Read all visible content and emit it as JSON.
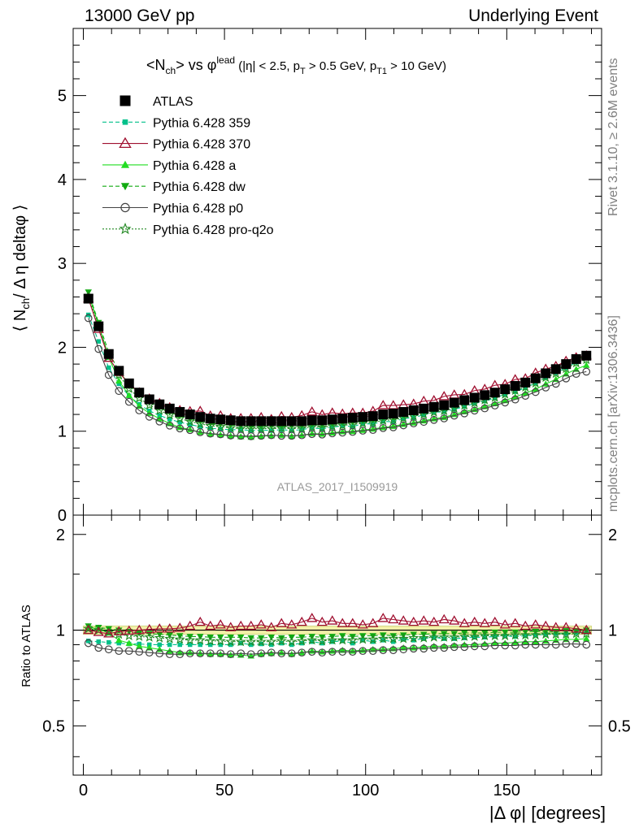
{
  "header": {
    "left": "13000 GeV pp",
    "right": "Underlying Event"
  },
  "side_labels": {
    "rivet": "Rivet 3.1.10, ≥ 2.6M events",
    "mcplots": "mcplots.cern.ch [arXiv:1306.3436]"
  },
  "chart_data": {
    "type": "scatter",
    "title": "<N_ch> vs φ^lead (|η| < 2.5, p_T > 0.5 GeV, p_T1 > 10 GeV)",
    "watermark": "ATLAS_2017_I1509919",
    "xlabel": "|Δ φ| [degrees]",
    "ylabel_main": "⟨ N_ch / Δη deltaφ ⟩",
    "ylabel_ratio": "Ratio to ATLAS",
    "xlim": [
      -3.6,
      183.6
    ],
    "ylim_main": [
      0,
      5.8
    ],
    "ylim_ratio": [
      0.35,
      2.3
    ],
    "ratio_scale": "log",
    "x_ticks": [
      "0",
      "50",
      "100",
      "150"
    ],
    "y_ticks_main": [
      "0",
      "1",
      "2",
      "3",
      "4",
      "5"
    ],
    "y_ticks_ratio": [
      "0.5",
      "1",
      "2"
    ],
    "x": [
      1.8,
      5.4,
      9,
      12.6,
      16.2,
      19.8,
      23.4,
      27,
      30.6,
      34.2,
      37.8,
      41.4,
      45,
      48.6,
      52.2,
      55.8,
      59.4,
      63,
      66.6,
      70.2,
      73.8,
      77.4,
      81,
      84.6,
      88.2,
      91.8,
      95.4,
      99,
      102.6,
      106.2,
      109.8,
      113.4,
      117,
      120.6,
      124.2,
      127.8,
      131.4,
      135,
      138.6,
      142.2,
      145.8,
      149.4,
      153,
      156.6,
      160.2,
      163.8,
      167.4,
      171,
      174.6,
      178.2
    ],
    "atlas": {
      "values": [
        2.58,
        2.25,
        1.92,
        1.72,
        1.57,
        1.46,
        1.38,
        1.32,
        1.27,
        1.23,
        1.2,
        1.17,
        1.15,
        1.14,
        1.13,
        1.12,
        1.12,
        1.12,
        1.12,
        1.12,
        1.12,
        1.12,
        1.13,
        1.13,
        1.14,
        1.15,
        1.16,
        1.17,
        1.18,
        1.2,
        1.21,
        1.23,
        1.25,
        1.27,
        1.29,
        1.31,
        1.34,
        1.37,
        1.4,
        1.43,
        1.46,
        1.5,
        1.54,
        1.58,
        1.63,
        1.69,
        1.74,
        1.8,
        1.86,
        1.9
      ],
      "band": 0.03
    },
    "series": [
      {
        "name": "ATLAS",
        "color": "#000000",
        "marker": "square-filled",
        "line": "none",
        "ratio": [
          1,
          1,
          1,
          1,
          1,
          1,
          1,
          1,
          1,
          1,
          1,
          1,
          1,
          1,
          1,
          1,
          1,
          1,
          1,
          1,
          1,
          1,
          1,
          1,
          1,
          1,
          1,
          1,
          1,
          1,
          1,
          1,
          1,
          1,
          1,
          1,
          1,
          1,
          1,
          1,
          1,
          1,
          1,
          1,
          1,
          1,
          1,
          1,
          1,
          1
        ]
      },
      {
        "name": "Pythia 6.428 359",
        "color": "#00c08a",
        "marker": "square-small",
        "line": "dashed",
        "ratio": [
          0.925,
          0.92,
          0.915,
          0.91,
          0.905,
          0.905,
          0.9,
          0.9,
          0.9,
          0.9,
          0.9,
          0.9,
          0.9,
          0.9,
          0.9,
          0.91,
          0.9,
          0.905,
          0.9,
          0.91,
          0.9,
          0.91,
          0.92,
          0.91,
          0.92,
          0.925,
          0.91,
          0.93,
          0.92,
          0.93,
          0.92,
          0.935,
          0.93,
          0.94,
          0.95,
          0.94,
          0.94,
          0.945,
          0.95,
          0.95,
          0.955,
          0.96,
          0.955,
          0.96,
          0.965,
          0.97,
          0.975,
          0.975,
          0.98,
          0.985
        ]
      },
      {
        "name": "Pythia 6.428 370",
        "color": "#a01030",
        "marker": "triangle-open",
        "line": "solid",
        "ratio": [
          1.0,
          0.985,
          0.975,
          0.99,
          0.995,
          1.0,
          1.005,
          1.01,
          1.01,
          1.015,
          1.03,
          1.06,
          1.03,
          1.04,
          1.02,
          1.03,
          1.03,
          1.04,
          1.02,
          1.05,
          1.04,
          1.06,
          1.09,
          1.06,
          1.07,
          1.05,
          1.05,
          1.04,
          1.05,
          1.09,
          1.08,
          1.07,
          1.06,
          1.07,
          1.06,
          1.08,
          1.07,
          1.05,
          1.06,
          1.05,
          1.06,
          1.04,
          1.05,
          1.03,
          1.04,
          1.03,
          1.02,
          1.02,
          1.01,
          1.0
        ]
      },
      {
        "name": "Pythia 6.428 a",
        "color": "#22dd22",
        "marker": "triangle-filled",
        "line": "solid",
        "ratio": [
          1.02,
          1.01,
          0.98,
          0.93,
          0.91,
          0.89,
          0.88,
          0.87,
          0.86,
          0.85,
          0.85,
          0.845,
          0.84,
          0.84,
          0.835,
          0.835,
          0.83,
          0.84,
          0.845,
          0.85,
          0.84,
          0.85,
          0.86,
          0.855,
          0.86,
          0.865,
          0.86,
          0.865,
          0.87,
          0.87,
          0.875,
          0.88,
          0.88,
          0.885,
          0.89,
          0.89,
          0.895,
          0.9,
          0.9,
          0.905,
          0.91,
          0.91,
          0.915,
          0.92,
          0.92,
          0.925,
          0.93,
          0.935,
          0.935,
          0.94
        ]
      },
      {
        "name": "Pythia 6.428 dw",
        "color": "#11aa11",
        "marker": "triangle-down-filled",
        "line": "dashed",
        "ratio": [
          1.03,
          1.02,
          1.01,
          1.0,
          0.99,
          0.98,
          0.975,
          0.97,
          0.965,
          0.96,
          0.955,
          0.955,
          0.95,
          0.95,
          0.95,
          0.95,
          0.945,
          0.945,
          0.95,
          0.945,
          0.95,
          0.95,
          0.955,
          0.95,
          0.955,
          0.96,
          0.955,
          0.96,
          0.96,
          0.965,
          0.96,
          0.965,
          0.97,
          0.97,
          0.975,
          0.975,
          0.975,
          0.98,
          0.98,
          0.98,
          0.985,
          0.985,
          0.985,
          0.99,
          0.99,
          0.99,
          0.99,
          0.995,
          0.995,
          1.0
        ]
      },
      {
        "name": "Pythia 6.428 p0",
        "color": "#444444",
        "marker": "circle-open",
        "line": "solid",
        "ratio": [
          0.91,
          0.88,
          0.87,
          0.86,
          0.86,
          0.855,
          0.85,
          0.845,
          0.84,
          0.84,
          0.845,
          0.845,
          0.845,
          0.845,
          0.84,
          0.845,
          0.84,
          0.845,
          0.85,
          0.845,
          0.845,
          0.85,
          0.855,
          0.85,
          0.855,
          0.855,
          0.855,
          0.86,
          0.86,
          0.865,
          0.865,
          0.87,
          0.875,
          0.875,
          0.88,
          0.88,
          0.885,
          0.885,
          0.89,
          0.89,
          0.895,
          0.895,
          0.895,
          0.9,
          0.9,
          0.9,
          0.9,
          0.905,
          0.905,
          0.9
        ]
      },
      {
        "name": "Pythia 6.428 pro-q2o",
        "color": "#228822",
        "marker": "star-open",
        "line": "dotted",
        "ratio": [
          1.01,
          1.0,
          0.985,
          0.97,
          0.96,
          0.955,
          0.95,
          0.945,
          0.94,
          0.935,
          0.93,
          0.93,
          0.925,
          0.925,
          0.92,
          0.92,
          0.92,
          0.92,
          0.92,
          0.925,
          0.92,
          0.925,
          0.93,
          0.925,
          0.93,
          0.93,
          0.93,
          0.935,
          0.935,
          0.94,
          0.94,
          0.94,
          0.945,
          0.945,
          0.95,
          0.95,
          0.95,
          0.955,
          0.955,
          0.96,
          0.96,
          0.96,
          0.965,
          0.965,
          0.965,
          0.97,
          0.97,
          0.97,
          0.975,
          0.975
        ]
      }
    ]
  }
}
